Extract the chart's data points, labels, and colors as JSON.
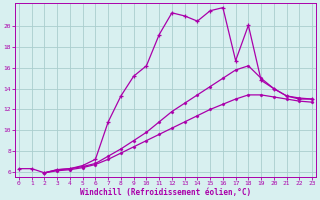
{
  "xlabel": "Windchill (Refroidissement éolien,°C)",
  "bg_color": "#d8f0f0",
  "grid_color": "#aacece",
  "line_color": "#aa00aa",
  "spine_color": "#aa00aa",
  "x_ticks": [
    0,
    1,
    2,
    3,
    4,
    5,
    6,
    7,
    8,
    9,
    10,
    11,
    12,
    13,
    14,
    15,
    16,
    17,
    18,
    19,
    20,
    21,
    22,
    23
  ],
  "y_ticks": [
    6,
    8,
    10,
    12,
    14,
    16,
    18,
    20
  ],
  "xlim": [
    -0.3,
    23.3
  ],
  "ylim": [
    5.5,
    22.2
  ],
  "line1_x": [
    0,
    1,
    2,
    3,
    4,
    5,
    6,
    7,
    8,
    9,
    10,
    11,
    12,
    13,
    14,
    15,
    16,
    17,
    18,
    19,
    20,
    21,
    22,
    23
  ],
  "line1_y": [
    6.3,
    6.3,
    5.9,
    6.2,
    6.3,
    6.6,
    7.2,
    10.8,
    13.3,
    15.2,
    16.2,
    19.2,
    21.3,
    21.0,
    20.5,
    21.5,
    21.8,
    16.7,
    20.1,
    14.8,
    14.0,
    13.3,
    13.0,
    13.0
  ],
  "line2_x": [
    2,
    3,
    4,
    5,
    6,
    7,
    8,
    9,
    10,
    11,
    12,
    13,
    14,
    15,
    16,
    17,
    18,
    19,
    20,
    21,
    22,
    23
  ],
  "line2_y": [
    5.9,
    6.2,
    6.3,
    6.5,
    6.8,
    7.5,
    8.2,
    9.0,
    9.8,
    10.8,
    11.8,
    12.6,
    13.4,
    14.2,
    15.0,
    15.8,
    16.2,
    15.0,
    14.0,
    13.3,
    13.1,
    13.0
  ],
  "line3_x": [
    2,
    3,
    4,
    5,
    6,
    7,
    8,
    9,
    10,
    11,
    12,
    13,
    14,
    15,
    16,
    17,
    18,
    19,
    20,
    21,
    22,
    23
  ],
  "line3_y": [
    5.9,
    6.1,
    6.2,
    6.4,
    6.7,
    7.2,
    7.8,
    8.4,
    9.0,
    9.6,
    10.2,
    10.8,
    11.4,
    12.0,
    12.5,
    13.0,
    13.4,
    13.4,
    13.2,
    13.0,
    12.8,
    12.7
  ]
}
